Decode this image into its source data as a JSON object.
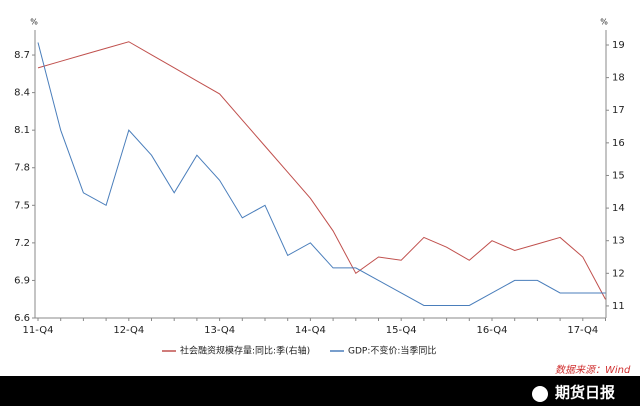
{
  "chart_data": {
    "type": "line",
    "categories": [
      "11-Q4",
      null,
      null,
      null,
      "12-Q4",
      null,
      null,
      null,
      "13-Q4",
      null,
      null,
      null,
      "14-Q4",
      null,
      null,
      null,
      "15-Q4",
      null,
      null,
      null,
      "16-Q4",
      null,
      null,
      null,
      "17-Q4",
      null
    ],
    "series": [
      {
        "name": "社会融资规模存量:同比:季(右轴)",
        "color": "#c0504d",
        "axis": "y2",
        "values": [
          18.3,
          18.5,
          18.7,
          18.9,
          19.1,
          18.7,
          18.3,
          17.9,
          17.5,
          16.7,
          15.9,
          15.1,
          14.3,
          13.3,
          12.0,
          12.5,
          12.4,
          13.1,
          12.8,
          12.4,
          13.0,
          12.7,
          12.9,
          13.1,
          12.5,
          11.2
        ]
      },
      {
        "name": "GDP:不变价:当季同比",
        "color": "#4a7ebb",
        "values": [
          8.8,
          8.1,
          7.6,
          7.5,
          8.1,
          7.9,
          7.6,
          7.9,
          7.7,
          7.4,
          7.5,
          7.1,
          7.2,
          7.0,
          7.0,
          6.9,
          6.8,
          6.7,
          6.7,
          6.7,
          6.8,
          6.9,
          6.9,
          6.8,
          6.8,
          6.8
        ]
      }
    ],
    "ylim": [
      6.6,
      8.9
    ],
    "yticks": [
      6.6,
      6.9,
      7.2,
      7.5,
      7.8,
      8.1,
      8.4,
      8.7
    ],
    "y2lim": [
      10.63,
      19.46
    ],
    "y2ticks": [
      11,
      12,
      13,
      14,
      15,
      16,
      17,
      18,
      19
    ],
    "y_unit": "%",
    "y2_unit": "%",
    "source": "数据来源：Wind",
    "logo": "期货日报"
  }
}
